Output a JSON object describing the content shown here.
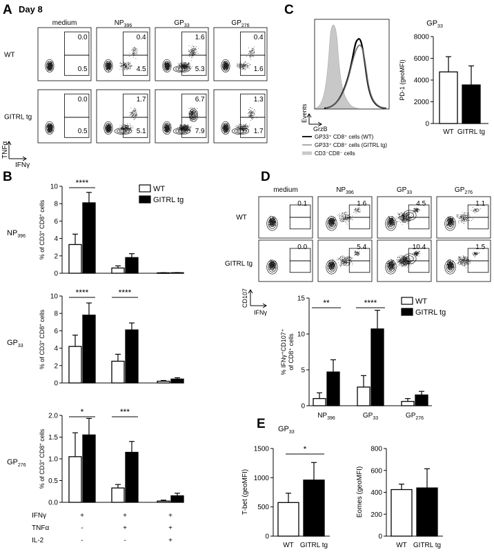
{
  "panels": {
    "A": {
      "letter": "A",
      "title": "Day 8",
      "cols": [
        "medium",
        "NP",
        "GP",
        "GP"
      ],
      "col_subs": [
        "",
        "396",
        "33",
        "276"
      ],
      "rows": [
        "WT",
        "GITRL tg"
      ],
      "y_axis": "TNFα",
      "x_axis": "IFNγ",
      "gates": [
        [
          "0.0",
          "0.5",
          "0.4",
          "4.5",
          "1.6",
          "5.3",
          "0.4",
          "1.6"
        ],
        [
          "0.0",
          "0.5",
          "1.7",
          "5.1",
          "6.7",
          "7.9",
          "1.3",
          "1.7"
        ]
      ]
    },
    "B": {
      "letter": "B",
      "legend": [
        "WT",
        "GITRL tg"
      ],
      "ylabel_main": "% of CD3",
      "ylabel_mid": " CD8",
      "ylabel_end": " cells",
      "ylabel_sup": "+",
      "row_labels": [
        [
          "NP",
          "396"
        ],
        [
          "GP",
          "33"
        ],
        [
          "GP",
          "276"
        ]
      ],
      "table_labels": [
        "IFNγ",
        "TNFα",
        "IL-2"
      ],
      "table": [
        [
          "+",
          "+",
          "+"
        ],
        [
          "-",
          "+",
          "+"
        ],
        [
          "-",
          "-",
          "+"
        ]
      ]
    },
    "C": {
      "letter": "C",
      "hist_y": "Events",
      "hist_x": "GrzB",
      "legend": [
        "GP33⁺ CD8⁺ cells (WT)",
        "GP33⁺ CD8⁺ cells (GITRL tg)",
        "CD3⁻CD8⁻ cells"
      ],
      "bar_title_main": "GP",
      "bar_title_sub": "33"
    },
    "D": {
      "letter": "D",
      "cols": [
        "medium",
        "NP",
        "GP",
        "GP"
      ],
      "col_subs": [
        "",
        "396",
        "33",
        "276"
      ],
      "rows": [
        "WT",
        "GITRL tg"
      ],
      "y_axis": "CD107",
      "x_axis": "IFNγ",
      "gates": [
        [
          "0.1",
          "1.6",
          "4.5",
          "1.1"
        ],
        [
          "0.0",
          "5.4",
          "10.4",
          "1.5"
        ]
      ],
      "legend": [
        "WT",
        "GITRL tg"
      ],
      "ylabel_l1": "% IFNγ⁺CD107⁺",
      "ylabel_l2": "of CD8⁺ cells"
    },
    "E": {
      "letter": "E",
      "title_main": "GP",
      "title_sub": "33"
    }
  },
  "chart_data": [
    {
      "id": "B-NP396",
      "type": "bar",
      "categories": [
        "IFNγ+ TNFα- IL-2-",
        "IFNγ+ TNFα+ IL-2-",
        "IFNγ+ TNFα+ IL-2+"
      ],
      "series": [
        {
          "name": "WT",
          "values": [
            3.3,
            0.6,
            0.05
          ],
          "errors": [
            1.2,
            0.25,
            0.02
          ],
          "color": "#ffffff"
        },
        {
          "name": "GITRL tg",
          "values": [
            8.1,
            1.8,
            0.06
          ],
          "errors": [
            1.2,
            0.45,
            0.02
          ],
          "color": "#000000"
        }
      ],
      "ylim": [
        0,
        10
      ],
      "yticks": [
        0,
        2,
        4,
        6,
        8,
        10
      ],
      "significance": [
        {
          "group": 0,
          "label": "****"
        }
      ]
    },
    {
      "id": "B-GP33",
      "type": "bar",
      "categories": [
        "IFNγ+ TNFα- IL-2-",
        "IFNγ+ TNFα+ IL-2-",
        "IFNγ+ TNFα+ IL-2+"
      ],
      "series": [
        {
          "name": "WT",
          "values": [
            4.2,
            2.5,
            0.2
          ],
          "errors": [
            1.3,
            0.8,
            0.08
          ],
          "color": "#ffffff"
        },
        {
          "name": "GITRL tg",
          "values": [
            7.8,
            6.1,
            0.45
          ],
          "errors": [
            1.4,
            0.8,
            0.15
          ],
          "color": "#000000"
        }
      ],
      "ylim": [
        0,
        10
      ],
      "yticks": [
        0,
        2,
        4,
        6,
        8,
        10
      ],
      "significance": [
        {
          "group": 0,
          "label": "****"
        },
        {
          "group": 1,
          "label": "****"
        }
      ]
    },
    {
      "id": "B-GP276",
      "type": "bar",
      "categories": [
        "IFNγ+ TNFα- IL-2-",
        "IFNγ+ TNFα+ IL-2-",
        "IFNγ+ TNFα+ IL-2+"
      ],
      "series": [
        {
          "name": "WT",
          "values": [
            1.05,
            0.33,
            0.03
          ],
          "errors": [
            0.55,
            0.08,
            0.02
          ],
          "color": "#ffffff"
        },
        {
          "name": "GITRL tg",
          "values": [
            1.55,
            1.15,
            0.15
          ],
          "errors": [
            0.38,
            0.25,
            0.06
          ],
          "color": "#000000"
        }
      ],
      "ylim": [
        0,
        2.0
      ],
      "yticks": [
        0,
        0.5,
        1.0,
        1.5,
        2.0
      ],
      "ytick_labels": [
        "0.0",
        "0.5",
        "1.0",
        "1.5",
        "2.0"
      ],
      "significance": [
        {
          "group": 0,
          "label": "*"
        },
        {
          "group": 1,
          "label": "***"
        }
      ]
    },
    {
      "id": "C-PD1",
      "type": "bar",
      "categories": [
        "WT",
        "GITRL tg"
      ],
      "values": [
        4750,
        3550
      ],
      "errors": [
        1400,
        1750
      ],
      "colors": [
        "#ffffff",
        "#000000"
      ],
      "ylabel": "PD-1 (geoMFI)",
      "ylim": [
        0,
        8000
      ],
      "yticks": [
        0,
        2000,
        4000,
        6000,
        8000
      ]
    },
    {
      "id": "D-CD107",
      "type": "bar",
      "categories": [
        "NP",
        "GP",
        "GP"
      ],
      "category_subs": [
        "396",
        "33",
        "276"
      ],
      "series": [
        {
          "name": "WT",
          "values": [
            1.0,
            2.6,
            0.6
          ],
          "errors": [
            0.8,
            1.6,
            0.4
          ],
          "color": "#ffffff"
        },
        {
          "name": "GITRL tg",
          "values": [
            4.7,
            10.7,
            1.5
          ],
          "errors": [
            1.7,
            2.6,
            0.5
          ],
          "color": "#000000"
        }
      ],
      "ylim": [
        0,
        15
      ],
      "yticks": [
        0,
        5,
        10,
        15
      ],
      "significance": [
        {
          "group": 0,
          "label": "**"
        },
        {
          "group": 1,
          "label": "****"
        }
      ]
    },
    {
      "id": "E-Tbet",
      "type": "bar",
      "categories": [
        "WT",
        "GITRL tg"
      ],
      "values": [
        575,
        960
      ],
      "errors": [
        160,
        300
      ],
      "colors": [
        "#ffffff",
        "#000000"
      ],
      "ylabel": "T-bet (geoMFI)",
      "ylim": [
        0,
        1500
      ],
      "yticks": [
        0,
        500,
        1000,
        1500
      ],
      "significance": [
        {
          "label": "*"
        }
      ]
    },
    {
      "id": "E-Eomes",
      "type": "bar",
      "categories": [
        "WT",
        "GITRL tg"
      ],
      "values": [
        425,
        440
      ],
      "errors": [
        50,
        175
      ],
      "colors": [
        "#ffffff",
        "#000000"
      ],
      "ylabel": "Eomes (geoMFI)",
      "ylim": [
        0,
        800
      ],
      "yticks": [
        0,
        200,
        400,
        600,
        800
      ]
    }
  ]
}
